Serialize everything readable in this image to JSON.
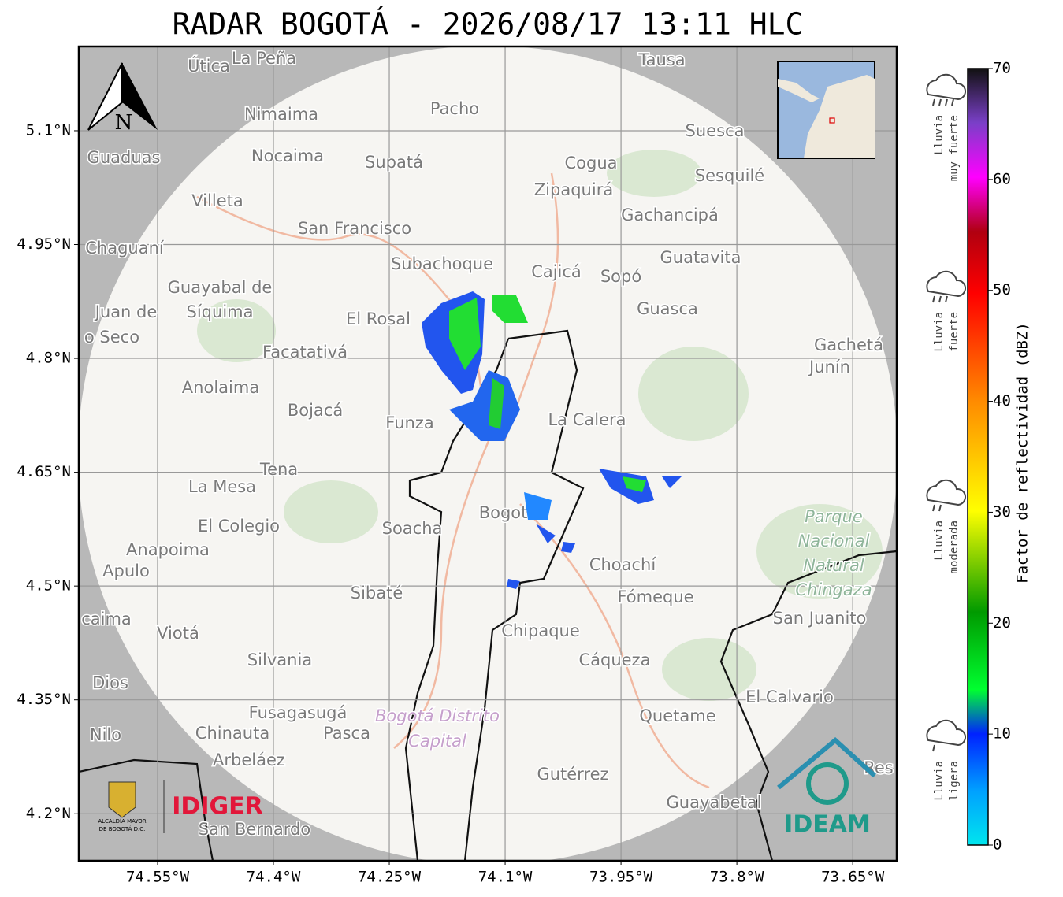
{
  "title": "RADAR BOGOTÁ - 2026/08/17 13:11 HLC",
  "map": {
    "lonlim": [
      -74.652,
      -73.593
    ],
    "latlim": [
      4.138,
      5.211
    ],
    "lon_ticks": [
      {
        "value": -74.55,
        "label": "74.55°W"
      },
      {
        "value": -74.4,
        "label": "74.4°W"
      },
      {
        "value": -74.25,
        "label": "74.25°W"
      },
      {
        "value": -74.1,
        "label": "74.1°W"
      },
      {
        "value": -73.95,
        "label": "73.95°W"
      },
      {
        "value": -73.8,
        "label": "73.8°W"
      },
      {
        "value": -73.65,
        "label": "73.65°W"
      }
    ],
    "lat_ticks": [
      {
        "value": 5.1,
        "label": "5.1°N"
      },
      {
        "value": 4.95,
        "label": "4.95°N"
      },
      {
        "value": 4.8,
        "label": "4.8°N"
      },
      {
        "value": 4.65,
        "label": "4.65°N"
      },
      {
        "value": 4.5,
        "label": "4.5°N"
      },
      {
        "value": 4.35,
        "label": "4.35°N"
      },
      {
        "value": 4.2,
        "label": "4.2°N"
      }
    ],
    "grid": true,
    "north_label": "N",
    "places": [
      "Útica",
      "La Peña",
      "Tausa",
      "Pacho",
      "Nimaima",
      "Nocaima",
      "Supatá",
      "Guaduas",
      "Villeta",
      "Cogua",
      "Zipaquirá",
      "Suesca",
      "Sesquilé",
      "Gachancipá",
      "San Francisco",
      "Chaguaní",
      "Subachoque",
      "Cajicá",
      "Sopó",
      "Guatavita",
      "Guayabal de",
      "Síquima",
      "Juan de",
      "o Seco",
      "El Rosal",
      "Guasca",
      "Facatativá",
      "Gachetá",
      "Junín",
      "Anolaima",
      "Bojacá",
      "Funza",
      "La Calera",
      "Tena",
      "La Mesa",
      "El Colegio",
      "Soacha",
      "Bogotá",
      "Anapoima",
      "Apulo",
      "Choachí",
      "Sibaté",
      "Fómeque",
      "San Juanito",
      "caima",
      "Viotá",
      "Chipaque",
      "Silvania",
      "Cáqueza",
      "Dios",
      "El Calvario",
      "Fusagasugá",
      "Quetame",
      "Nilo",
      "Chinauta",
      "Pasca",
      "Arbeláez",
      "Gutérrez",
      "Res",
      "Guayabetal",
      "San Bernardo"
    ],
    "park_label": [
      "Parque",
      "Nacional",
      "Natural",
      "Chingaza"
    ],
    "district_label": [
      "Bogotá Distrito",
      "Capital"
    ],
    "logos": {
      "alcaldia": [
        "ALCALDÍA MAYOR",
        "DE BOGOTÁ D.C."
      ],
      "idiger": "IDIGER",
      "ideam": "IDEAM"
    }
  },
  "colorbar": {
    "label": "Factor de reflectividad (dBZ)",
    "range": [
      0,
      70
    ],
    "ticks": [
      0,
      10,
      20,
      30,
      40,
      50,
      60,
      70
    ],
    "categories": [
      [
        "Lluvia",
        "muy fuerte"
      ],
      [
        "Lluvia",
        "fuerte"
      ],
      [
        "Lluvia",
        "moderada"
      ],
      [
        "Lluvia",
        "ligera"
      ]
    ]
  }
}
